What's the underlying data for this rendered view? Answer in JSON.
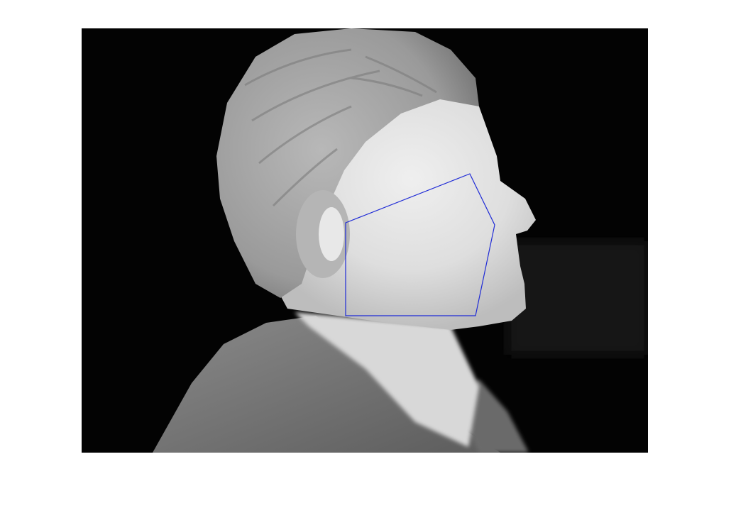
{
  "figure": {
    "background": "#ffffff",
    "image": {
      "kind": "thermal-grayscale-portrait",
      "subject": "person-profile-facing-right",
      "background_color": "#000000"
    },
    "roi_polygon": {
      "stroke_color": "#1f2bd6",
      "shape": "pentagon-over-cheek"
    }
  }
}
